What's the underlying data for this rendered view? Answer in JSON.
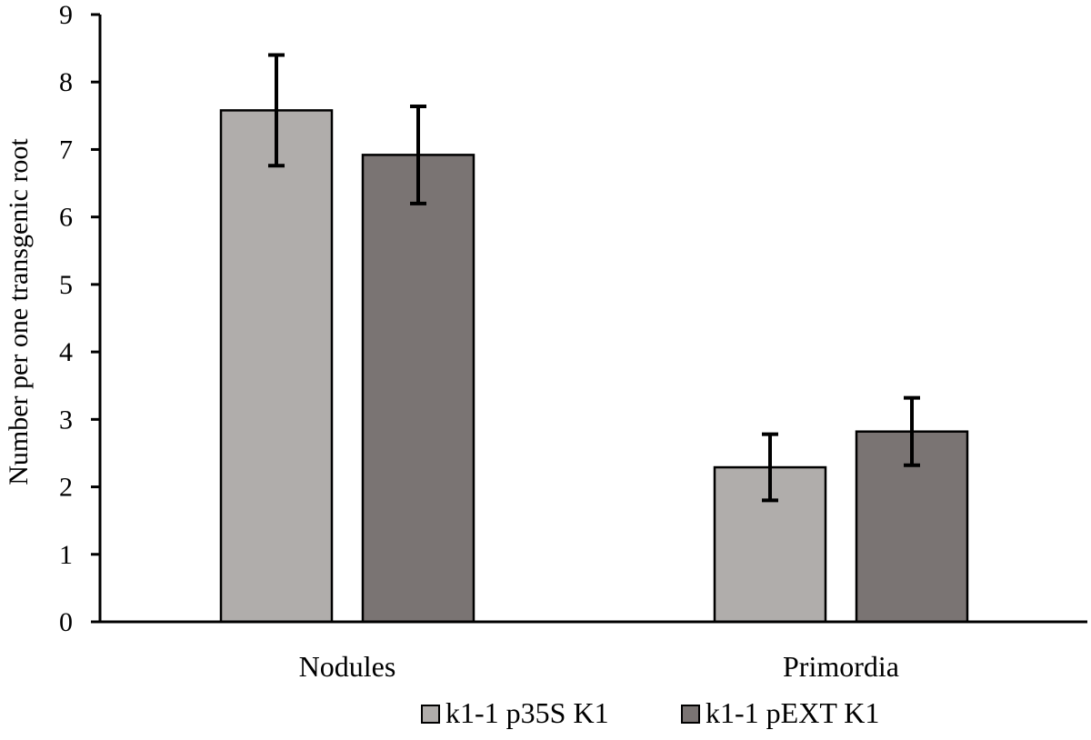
{
  "chart_data": {
    "type": "bar",
    "title": "",
    "xlabel": "",
    "ylabel": "Number per one transgenic root",
    "ylim": [
      0,
      9
    ],
    "yticks": [
      0,
      1,
      2,
      3,
      4,
      5,
      6,
      7,
      8,
      9
    ],
    "categories": [
      "Nodules",
      "Primordia"
    ],
    "series": [
      {
        "name": "k1-1 p35S K1",
        "color": "#b0adab",
        "values": [
          7.58,
          2.29
        ],
        "error": [
          0.82,
          0.49
        ]
      },
      {
        "name": "k1-1 pEXT K1",
        "color": "#7a7473",
        "values": [
          6.92,
          2.82
        ],
        "error": [
          0.72,
          0.5
        ]
      }
    ],
    "grid": false,
    "legend_position": "bottom"
  }
}
